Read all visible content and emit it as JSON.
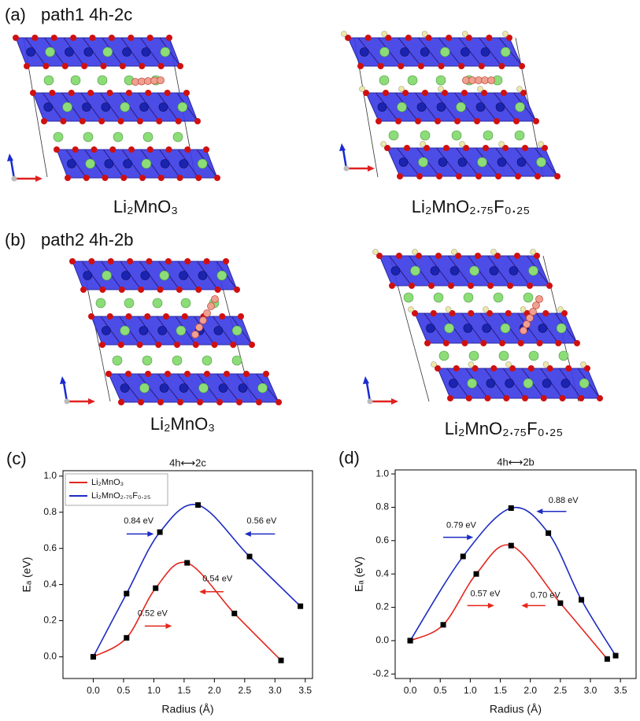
{
  "figure": {
    "a": {
      "label": "(a)",
      "title": "path1 4h-2c",
      "structures": [
        "Li₂MnO₃",
        "Li₂MnO₂.₇₅F₀.₂₅"
      ]
    },
    "b": {
      "label": "(b)",
      "title": "path2 4h-2b",
      "structures": [
        "Li₂MnO₃",
        "Li₂MnO₂.₇₅F₀.₂₅"
      ]
    }
  },
  "chart_data": [
    {
      "type": "line",
      "panel_label": "(c)",
      "title": "4h⟷2c",
      "xlabel": "Radius (Å)",
      "ylabel": "Eₐ (eV)",
      "xlim": [
        -0.5,
        3.62
      ],
      "ylim": [
        -0.12,
        1.03
      ],
      "xticks": [
        {
          "value": 0,
          "label": "0.0"
        },
        0.5,
        {
          "value": 1,
          "label": "1.0"
        },
        1.5,
        {
          "value": 2,
          "label": "2.0"
        },
        2.5,
        {
          "value": 3,
          "label": "3.0"
        },
        3.5
      ],
      "yticks": [
        {
          "value": 0,
          "label": "0.0"
        },
        0.2,
        0.4,
        0.6,
        0.8,
        {
          "value": 1,
          "label": "1.0"
        }
      ],
      "legend": "upper left",
      "series": [
        {
          "name": "Li₂MnO₃",
          "color": "#e3261c",
          "x": [
            0,
            0.55,
            1.03,
            1.55,
            2.33,
            3.1
          ],
          "values": [
            0,
            0.105,
            0.38,
            0.52,
            0.24,
            -0.02
          ]
        },
        {
          "name": "Li₂MnO₂.₇₅F₀.₂₅",
          "color": "#1c2bc4",
          "x": [
            0,
            0.55,
            1.1,
            1.73,
            2.58,
            3.42
          ],
          "values": [
            0,
            0.35,
            0.69,
            0.84,
            0.555,
            0.28
          ]
        }
      ],
      "annotations": [
        {
          "text": "0.84 eV",
          "color": "#1c2bc4"
        },
        {
          "text": "0.56 eV",
          "color": "#1c2bc4"
        },
        {
          "text": "0.52 eV",
          "color": "#e3261c"
        },
        {
          "text": "0.54 eV",
          "color": "#e3261c"
        }
      ]
    },
    {
      "type": "line",
      "panel_label": "(d)",
      "title": "4h⟷2b",
      "xlabel": "Radius (Å)",
      "ylabel": "Eₐ (eV)",
      "xlim": [
        -0.25,
        3.76
      ],
      "ylim": [
        -0.227,
        1.024
      ],
      "xticks": [
        {
          "value": 0,
          "label": "0.0"
        },
        0.5,
        {
          "value": 1,
          "label": "1.0"
        },
        1.5,
        {
          "value": 2,
          "label": "2.0"
        },
        2.5,
        {
          "value": 3,
          "label": "3.0"
        },
        3.5
      ],
      "yticks": [
        -0.2,
        {
          "value": 0,
          "label": "0.0"
        },
        0.2,
        0.4,
        0.6,
        0.8,
        {
          "value": 1,
          "label": "1.0"
        }
      ],
      "series": [
        {
          "color": "#e3261c",
          "x": [
            0,
            0.55,
            1.1,
            1.68,
            2.5,
            3.28
          ],
          "values": [
            0,
            0.095,
            0.4,
            0.57,
            0.225,
            -0.11
          ]
        },
        {
          "color": "#1c2bc4",
          "x": [
            0,
            0.88,
            1.68,
            2.3,
            2.85,
            3.42
          ],
          "values": [
            0,
            0.505,
            0.795,
            0.645,
            0.245,
            -0.09
          ]
        }
      ],
      "annotations": [
        {
          "text": "0.79 eV",
          "color": "#1c2bc4"
        },
        {
          "text": "0.88 eV",
          "color": "#1c2bc4"
        },
        {
          "text": "0.57 eV",
          "color": "#e3261c"
        },
        {
          "text": "0.70 eV",
          "color": "#e3261c"
        }
      ]
    }
  ]
}
